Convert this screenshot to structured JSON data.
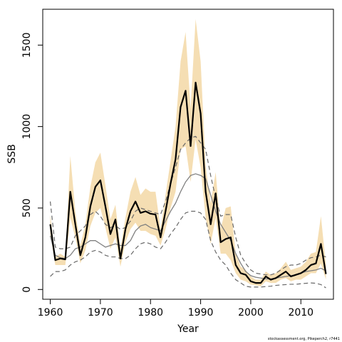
{
  "chart_data": {
    "type": "line",
    "title": "",
    "xlabel": "Year",
    "ylabel": "SSB",
    "xlim": [
      1958.5,
      2016.5
    ],
    "ylim": [
      -60,
      1720
    ],
    "xticks": [
      1960,
      1970,
      1980,
      1990,
      2000,
      2010
    ],
    "yticks": [
      0,
      500,
      1000,
      1500
    ],
    "grid": false,
    "legend": "none",
    "footer": "stockassessment.org, Pikeperch2, r7441",
    "colors": {
      "band": "#f5deb3",
      "estimate": "#000000",
      "model": "#808080",
      "model_bounds": "#696969"
    },
    "years": [
      1960,
      1961,
      1962,
      1963,
      1964,
      1965,
      1966,
      1967,
      1968,
      1969,
      1970,
      1971,
      1972,
      1973,
      1974,
      1975,
      1976,
      1977,
      1978,
      1979,
      1980,
      1981,
      1982,
      1983,
      1984,
      1985,
      1986,
      1987,
      1988,
      1989,
      1990,
      1991,
      1992,
      1993,
      1994,
      1995,
      1996,
      1997,
      1998,
      1999,
      2000,
      2001,
      2002,
      2003,
      2004,
      2005,
      2006,
      2007,
      2008,
      2009,
      2010,
      2011,
      2012,
      2013,
      2014,
      2015
    ],
    "series": [
      {
        "role": "estimate",
        "style": "solid-black-thick",
        "values": [
          400,
          180,
          190,
          185,
          600,
          400,
          210,
          320,
          510,
          630,
          670,
          510,
          340,
          430,
          190,
          370,
          480,
          540,
          470,
          480,
          465,
          460,
          320,
          480,
          650,
          800,
          1120,
          1220,
          880,
          1270,
          1080,
          600,
          400,
          590,
          290,
          310,
          320,
          150,
          100,
          90,
          50,
          40,
          40,
          80,
          60,
          70,
          90,
          110,
          80,
          90,
          100,
          120,
          150,
          160,
          280,
          95
        ]
      },
      {
        "role": "upper_ci",
        "style": "band",
        "values": [
          460,
          200,
          220,
          200,
          820,
          480,
          270,
          400,
          630,
          780,
          840,
          640,
          430,
          520,
          250,
          440,
          600,
          690,
          580,
          620,
          600,
          600,
          370,
          580,
          790,
          1000,
          1400,
          1580,
          1110,
          1660,
          1400,
          760,
          530,
          720,
          370,
          500,
          510,
          220,
          140,
          120,
          80,
          60,
          60,
          110,
          90,
          100,
          130,
          170,
          120,
          130,
          140,
          170,
          220,
          230,
          450,
          150
        ]
      },
      {
        "role": "lower_ci",
        "style": "band",
        "values": [
          340,
          150,
          150,
          150,
          440,
          320,
          160,
          240,
          390,
          470,
          500,
          380,
          250,
          320,
          140,
          290,
          370,
          410,
          360,
          360,
          340,
          330,
          270,
          370,
          500,
          600,
          860,
          880,
          660,
          920,
          750,
          440,
          280,
          440,
          220,
          220,
          180,
          100,
          60,
          50,
          30,
          25,
          20,
          50,
          40,
          40,
          60,
          70,
          50,
          60,
          60,
          80,
          100,
          100,
          160,
          60
        ]
      },
      {
        "role": "model",
        "style": "solid-grey",
        "values": [
          330,
          210,
          195,
          190,
          210,
          250,
          260,
          280,
          300,
          300,
          280,
          260,
          270,
          280,
          270,
          270,
          300,
          360,
          390,
          400,
          380,
          370,
          360,
          420,
          480,
          530,
          600,
          660,
          700,
          710,
          700,
          680,
          580,
          480,
          400,
          350,
          300,
          220,
          160,
          110,
          85,
          75,
          70,
          65,
          65,
          70,
          75,
          80,
          85,
          90,
          100,
          110,
          115,
          120,
          130,
          115
        ]
      },
      {
        "role": "model_upper",
        "style": "dashed-grey",
        "values": [
          540,
          260,
          250,
          250,
          260,
          330,
          360,
          390,
          460,
          480,
          450,
          400,
          380,
          390,
          370,
          380,
          420,
          480,
          500,
          490,
          480,
          470,
          460,
          540,
          650,
          750,
          860,
          900,
          930,
          940,
          900,
          860,
          700,
          560,
          450,
          460,
          460,
          320,
          210,
          160,
          120,
          100,
          95,
          90,
          90,
          100,
          120,
          140,
          150,
          150,
          160,
          180,
          195,
          200,
          210,
          200
        ]
      },
      {
        "role": "model_lower",
        "style": "dashed-grey",
        "values": [
          80,
          110,
          110,
          120,
          150,
          170,
          180,
          200,
          230,
          240,
          230,
          210,
          200,
          200,
          190,
          190,
          210,
          250,
          280,
          290,
          280,
          260,
          250,
          290,
          340,
          380,
          430,
          470,
          480,
          480,
          470,
          430,
          300,
          230,
          180,
          150,
          100,
          60,
          40,
          20,
          15,
          15,
          15,
          18,
          20,
          25,
          28,
          30,
          32,
          32,
          35,
          38,
          40,
          38,
          30,
          10
        ]
      }
    ]
  }
}
